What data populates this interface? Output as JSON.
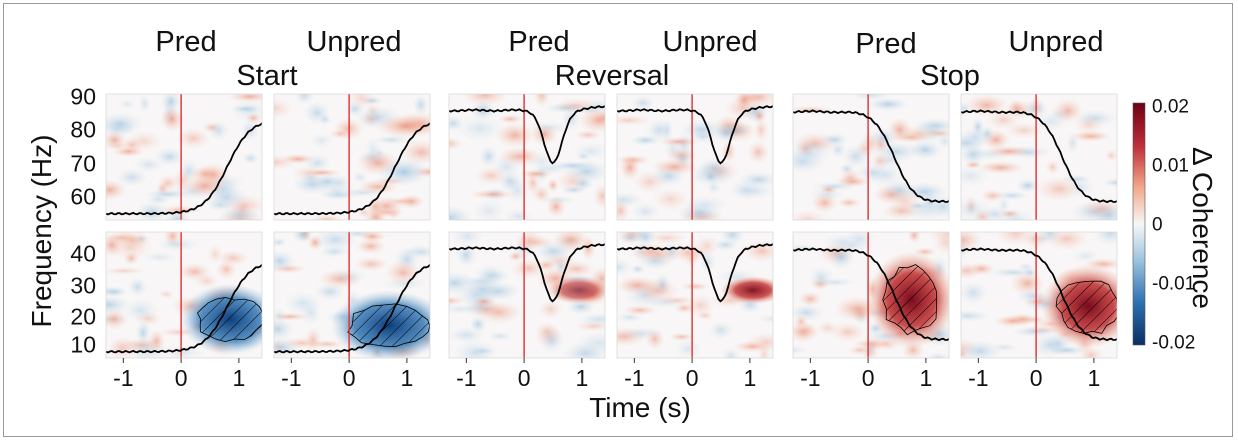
{
  "chart_data": {
    "type": "heatmap",
    "title": "",
    "xlabel": "Time (s)",
    "ylabel": "Frequency (Hz)",
    "colorbar": {
      "label": "Δ Coherence",
      "range": [
        -0.02,
        0.02
      ],
      "ticks": [
        "0.02",
        "0.01",
        "0",
        "-0.01",
        "-0.02"
      ],
      "colors": {
        "high": "#7b0a1a",
        "mid": "#ffffff",
        "low": "#0a3d7a"
      }
    },
    "x_ticks": [
      "-1",
      "0",
      "1"
    ],
    "x_range": [
      -1.3,
      1.4
    ],
    "rows": [
      {
        "name": "high",
        "ticks": [
          "90",
          "80",
          "70",
          "60"
        ],
        "ylim": [
          55,
          90
        ]
      },
      {
        "name": "low",
        "ticks": [
          "40",
          "30",
          "20",
          "10"
        ],
        "ylim": [
          6,
          45
        ]
      }
    ],
    "groups": [
      {
        "title": "Start",
        "columns": [
          "Pred",
          "Unpred"
        ],
        "trace": "rise"
      },
      {
        "title": "Reversal",
        "columns": [
          "Pred",
          "Unpred"
        ],
        "trace": "dip"
      },
      {
        "title": "Stop",
        "columns": [
          "Pred",
          "Unpred"
        ],
        "trace": "fall"
      }
    ],
    "trace_color": "#000000",
    "event_line_color": "#e03030",
    "significant_clusters": [
      {
        "panel": "Start-Pred-low",
        "sign": "negative",
        "time_range": [
          0.3,
          1.4
        ],
        "freq_range": [
          12,
          24
        ]
      },
      {
        "panel": "Start-Unpred-low",
        "sign": "negative",
        "time_range": [
          0.0,
          1.4
        ],
        "freq_range": [
          10,
          22
        ]
      },
      {
        "panel": "Stop-Pred-low",
        "sign": "positive",
        "time_range": [
          0.3,
          1.2
        ],
        "freq_range": [
          14,
          34
        ]
      },
      {
        "panel": "Stop-Unpred-low",
        "sign": "positive",
        "time_range": [
          0.4,
          1.4
        ],
        "freq_range": [
          14,
          30
        ]
      }
    ]
  }
}
